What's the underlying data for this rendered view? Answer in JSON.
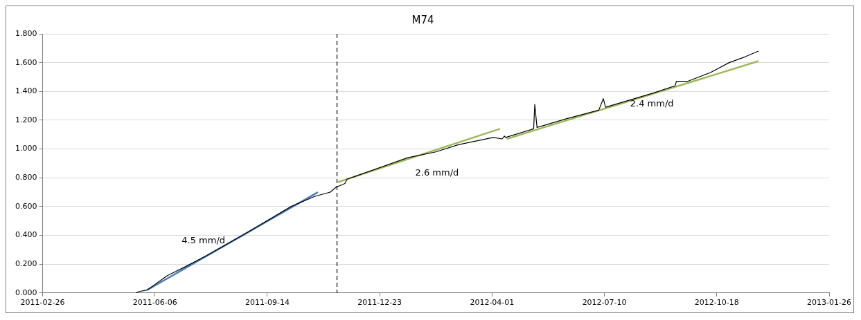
{
  "chart_data": {
    "type": "line",
    "title": "M74",
    "xlim": [
      "2011-02-26",
      "2013-01-26"
    ],
    "xticks": [
      "2011-02-26",
      "2011-06-06",
      "2011-09-14",
      "2011-12-23",
      "2012-04-01",
      "2012-07-10",
      "2012-10-18",
      "2013-01-26"
    ],
    "ylim": [
      0,
      1.8
    ],
    "yticks": [
      {
        "value": 0,
        "label": "0.000"
      },
      {
        "value": 0.2,
        "label": "0.200"
      },
      {
        "value": 0.4,
        "label": "0.400"
      },
      {
        "value": 0.6,
        "label": "0.600"
      },
      {
        "value": 0.8,
        "label": "0.800"
      },
      {
        "value": 1,
        "label": "1.000"
      },
      {
        "value": 1.2,
        "label": "1.200"
      },
      {
        "value": 1.4,
        "label": "1.400"
      },
      {
        "value": 1.6,
        "label": "1.600"
      },
      {
        "value": 1.8,
        "label": "1.800"
      }
    ],
    "grid": "y",
    "legend": false,
    "marker": "none",
    "line_style": "solid",
    "series": [
      {
        "color": "#000000",
        "x": [
          "2011-05-20",
          "2011-05-23",
          "2011-05-30",
          "2011-06-17",
          "2011-06-30",
          "2011-07-22",
          "2011-08-25",
          "2011-10-05",
          "2011-10-26",
          "2011-11-09",
          "2011-11-15",
          "2011-11-16",
          "2011-11-22",
          "2011-11-24",
          "2012-01-17",
          "2012-02-11",
          "2012-03-02",
          "2012-04-02",
          "2012-04-10",
          "2012-04-12",
          "2012-04-13",
          "2012-05-08",
          "2012-05-09",
          "2012-05-11",
          "2012-05-20",
          "2012-06-06",
          "2012-07-05",
          "2012-07-09",
          "2012-07-11",
          "2012-08-23",
          "2012-09-11",
          "2012-09-12",
          "2012-09-22",
          "2012-10-12",
          "2012-10-29",
          "2012-11-12",
          "2012-11-24"
        ],
        "values": [
          0,
          0.01,
          0.02,
          0.12,
          0.17,
          0.26,
          0.41,
          0.6,
          0.67,
          0.7,
          0.74,
          0.74,
          0.76,
          0.79,
          0.94,
          0.98,
          1.03,
          1.08,
          1.07,
          1.09,
          1.08,
          1.14,
          1.31,
          1.15,
          1.17,
          1.21,
          1.27,
          1.35,
          1.29,
          1.39,
          1.44,
          1.47,
          1.47,
          1.53,
          1.6,
          1.64,
          1.68
        ]
      },
      {
        "color": "#4a7ebb",
        "x": [
          "2011-05-30",
          "2011-10-29"
        ],
        "values": [
          0.02,
          0.7
        ]
      },
      {
        "color": "#9bbb59",
        "x": [
          "2011-11-16",
          "2012-04-08"
        ],
        "values": [
          0.77,
          1.14
        ]
      },
      {
        "color": "#9bbb59",
        "x": [
          "2012-04-14",
          "2012-11-24"
        ],
        "values": [
          1.07,
          1.61
        ]
      }
    ],
    "ref_lines": [
      {
        "axis": "x",
        "value": "2011-11-15",
        "color": "#000000",
        "line_style": "dashed"
      }
    ],
    "annotations": [
      "4.5 mm/d",
      "2.6 mm/d",
      "2.4 mm/d"
    ]
  }
}
